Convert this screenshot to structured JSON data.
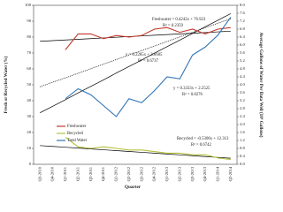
{
  "chart_data": {
    "type": "line",
    "x_label": "Quarter",
    "y_label": "Fresh or Recycled Water (%)",
    "y2_label": "Average Gallons of Water Per Data Well (10⁶ Gallons)",
    "categories": [
      "Q3-2010",
      "Q4-2010",
      "Q1-2011",
      "Q2-2011",
      "Q3-2011",
      "Q4-2011",
      "Q1-2012",
      "Q2-2012",
      "Q3-2012",
      "Q4-2012",
      "Q1-2013",
      "Q2-2013",
      "Q3-2013",
      "Q4-2013",
      "Q1-2014",
      "Q2-2014"
    ],
    "series": [
      {
        "name": "Freshwater",
        "color": "#c0392b",
        "values": [
          null,
          null,
          72,
          82,
          82,
          79,
          81,
          80,
          81,
          85,
          86,
          83,
          85,
          82,
          85,
          86
        ]
      },
      {
        "name": "Recycled",
        "color": "#b5c03a",
        "values": [
          null,
          null,
          17,
          11,
          10,
          11,
          10,
          9,
          9,
          8,
          7,
          7,
          6,
          6,
          4,
          3
        ]
      },
      {
        "name": "Total Water",
        "color": "#2e75b6",
        "axis": "y2",
        "values": [
          null,
          null,
          3.3,
          3.8,
          3.5,
          2.95,
          2.4,
          3.3,
          3.1,
          3.7,
          4.4,
          4.3,
          5.5,
          5.9,
          6.5,
          7.4
        ]
      }
    ],
    "trendlines": [
      {
        "equation": "Freshwater = 0.4242x + 76.923",
        "r2": "R² = 0.2359",
        "color": "#000000",
        "style": "solid",
        "values": [
          77.35,
          77.77,
          78.2,
          78.62,
          79.04,
          79.47,
          79.89,
          80.32,
          80.74,
          81.17,
          81.59,
          82.01,
          82.44,
          82.86,
          83.29,
          83.71
        ]
      },
      {
        "equation": "y = 0.2285x + 3.6685",
        "r2": "R² = 0.6737",
        "color": "#000000",
        "style": "dotted",
        "axis": "y2",
        "values": [
          3.9,
          4.13,
          4.35,
          4.58,
          4.81,
          5.04,
          5.27,
          5.5,
          5.72,
          5.95,
          6.18,
          6.41,
          6.64,
          6.87,
          7.1,
          7.32
        ]
      },
      {
        "equation": "y = 0.3333x + 2.2525",
        "r2": "R² = 0.8276",
        "color": "#000000",
        "style": "solid",
        "axis": "y2",
        "values": [
          2.59,
          2.92,
          3.25,
          3.59,
          3.92,
          4.25,
          4.59,
          4.92,
          5.25,
          5.59,
          5.92,
          6.25,
          6.58,
          6.92,
          7.25,
          7.58
        ]
      },
      {
        "equation": "Recycled = -0.5306x + 12.313",
        "r2": "R² = 0.6742",
        "color": "#000000",
        "style": "solid",
        "values": [
          11.78,
          11.25,
          10.72,
          10.19,
          9.66,
          9.13,
          8.6,
          8.07,
          7.54,
          7.01,
          6.48,
          5.95,
          5.42,
          4.88,
          4.35,
          3.82
        ]
      }
    ],
    "ylim": [
      0,
      100
    ],
    "yticks": [
      0,
      10,
      20,
      30,
      40,
      50,
      60,
      70,
      80,
      90,
      100
    ],
    "y2lim": [
      0,
      8
    ],
    "y2ticks": [
      {
        "value": 0,
        "label": "0.0"
      },
      0.4,
      0.8,
      1.2,
      1.6,
      {
        "value": 2,
        "label": "2.0"
      },
      2.4,
      2.8,
      3.2,
      3.6,
      {
        "value": 4,
        "label": "4.0"
      },
      4.4,
      4.8,
      5.2,
      5.6,
      {
        "value": 6,
        "label": "6.0"
      },
      6.4,
      6.8,
      7.2,
      7.6,
      {
        "value": 8,
        "label": "8.0"
      }
    ],
    "grid": false,
    "legend": "left"
  }
}
